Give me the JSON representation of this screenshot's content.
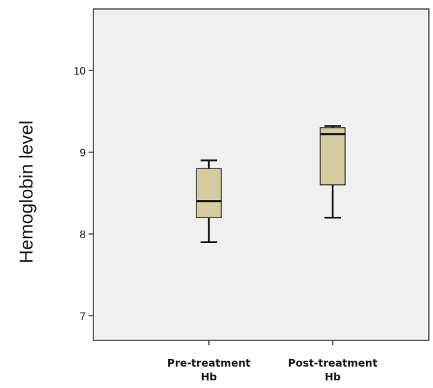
{
  "chart_data": {
    "type": "boxplot",
    "title": "",
    "xlabel": "",
    "ylabel": "Hemoglobin level",
    "ylim": [
      6.7,
      10.75
    ],
    "y_ticks": [
      7,
      8,
      9,
      10
    ],
    "y_tick_labels": [
      "7",
      "8",
      "9",
      "10"
    ],
    "grid": false,
    "legend": "none",
    "categories": [
      {
        "line1": "Pre-treatment",
        "line2": "Hb"
      },
      {
        "line1": "Post-treatment",
        "line2": "Hb"
      }
    ],
    "boxes": [
      {
        "whisker_low": 7.9,
        "q1": 8.2,
        "median": 8.4,
        "q3": 8.8,
        "whisker_high": 8.9
      },
      {
        "whisker_low": 8.2,
        "q1": 8.6,
        "median": 9.22,
        "q3": 9.3,
        "whisker_high": 9.32
      }
    ],
    "colors": {
      "plot_background": "#f0f0f0",
      "box_fill": "#d4cc9f",
      "axis": "#333333",
      "line": "#111111"
    }
  }
}
